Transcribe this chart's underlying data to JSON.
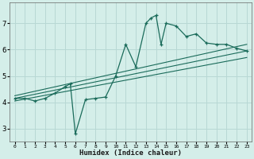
{
  "xlabel": "Humidex (Indice chaleur)",
  "bg_color": "#d4eee9",
  "grid_color": "#b8d8d4",
  "line_color": "#1a6b5a",
  "xlim": [
    -0.5,
    23.5
  ],
  "ylim": [
    2.5,
    7.8
  ],
  "yticks": [
    3,
    4,
    5,
    6,
    7
  ],
  "xticks": [
    0,
    1,
    2,
    3,
    4,
    5,
    6,
    7,
    8,
    9,
    10,
    11,
    12,
    13,
    14,
    15,
    16,
    17,
    18,
    19,
    20,
    21,
    22,
    23
  ],
  "series1_x": [
    0,
    1,
    2,
    3,
    4,
    5,
    5.5,
    6,
    7,
    8,
    9,
    10,
    11,
    12,
    13,
    13.5,
    14,
    14.5,
    15,
    16,
    17,
    18,
    19,
    20,
    21,
    22,
    23
  ],
  "series1_y": [
    4.15,
    4.15,
    4.05,
    4.15,
    4.35,
    4.6,
    4.7,
    2.8,
    4.1,
    4.15,
    4.2,
    5.0,
    6.2,
    5.35,
    7.0,
    7.2,
    7.3,
    6.2,
    7.0,
    6.9,
    6.5,
    6.6,
    6.25,
    6.2,
    6.2,
    6.05,
    5.95
  ],
  "line2_x": [
    0,
    23
  ],
  "line2_y": [
    4.15,
    5.95
  ],
  "line3_x": [
    0,
    23
  ],
  "line3_y": [
    4.05,
    5.7
  ],
  "line4_x": [
    0,
    23
  ],
  "line4_y": [
    4.25,
    6.2
  ]
}
